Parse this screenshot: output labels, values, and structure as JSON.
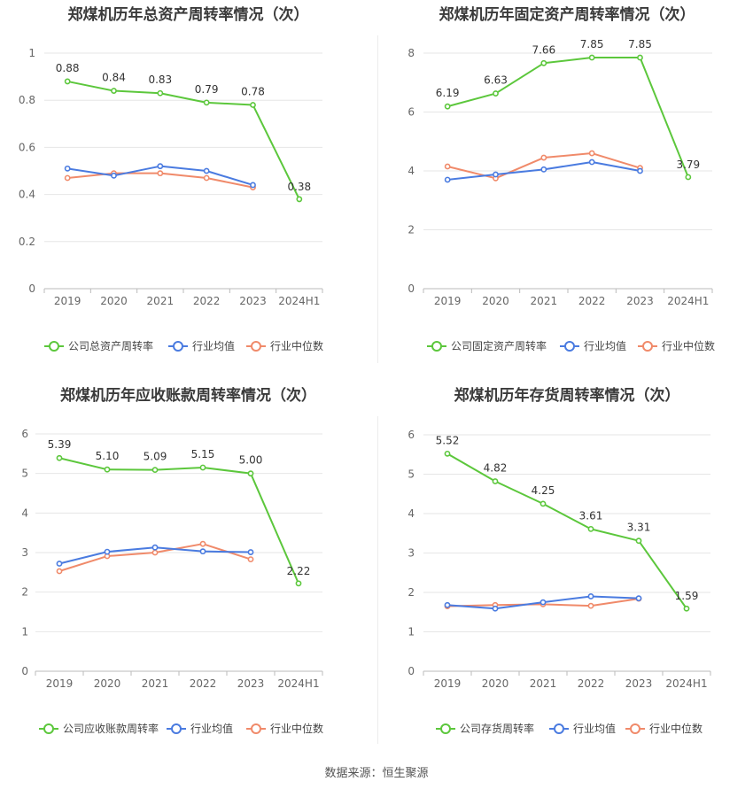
{
  "source_label": "数据来源：恒生聚源",
  "colors": {
    "company": "#5cc73c",
    "avg": "#4a7be0",
    "median": "#f08a6a"
  },
  "chart_data": [
    {
      "type": "line",
      "title": "郑煤机历年总资产周转率情况（次）",
      "categories": [
        "2019",
        "2020",
        "2021",
        "2022",
        "2023",
        "2024H1"
      ],
      "ylim": [
        0,
        1
      ],
      "yticks": [
        0,
        0.2,
        0.4,
        0.6,
        0.8,
        1
      ],
      "ytick_labels": [
        "0",
        "0.2",
        "0.4",
        "0.6",
        "0.8",
        "1"
      ],
      "grid": true,
      "legend": "bottom",
      "series": [
        {
          "name": "公司总资产周转率",
          "role": "company",
          "values": [
            0.88,
            0.84,
            0.83,
            0.79,
            0.78,
            0.38
          ],
          "labels": [
            "0.88",
            "0.84",
            "0.83",
            "0.79",
            "0.78",
            "0.38"
          ]
        },
        {
          "name": "行业均值",
          "role": "avg",
          "values": [
            0.51,
            0.48,
            0.52,
            0.5,
            0.44,
            null
          ]
        },
        {
          "name": "行业中位数",
          "role": "median",
          "values": [
            0.47,
            0.49,
            0.49,
            0.47,
            0.43,
            null
          ]
        }
      ]
    },
    {
      "type": "line",
      "title": "郑煤机历年固定资产周转率情况（次）",
      "categories": [
        "2019",
        "2020",
        "2021",
        "2022",
        "2023",
        "2024H1"
      ],
      "ylim": [
        0,
        8
      ],
      "yticks": [
        0,
        2,
        4,
        6,
        8
      ],
      "ytick_labels": [
        "0",
        "2",
        "4",
        "6",
        "8"
      ],
      "grid": true,
      "legend": "bottom",
      "series": [
        {
          "name": "公司固定资产周转率",
          "role": "company",
          "values": [
            6.19,
            6.63,
            7.66,
            7.85,
            7.85,
            3.79
          ],
          "labels": [
            "6.19",
            "6.63",
            "7.66",
            "7.85",
            "7.85",
            "3.79"
          ]
        },
        {
          "name": "行业均值",
          "role": "avg",
          "values": [
            3.7,
            3.88,
            4.05,
            4.3,
            4.0,
            null
          ]
        },
        {
          "name": "行业中位数",
          "role": "median",
          "values": [
            4.15,
            3.75,
            4.45,
            4.6,
            4.1,
            null
          ]
        }
      ]
    },
    {
      "type": "line",
      "title": "郑煤机历年应收账款周转率情况（次）",
      "categories": [
        "2019",
        "2020",
        "2021",
        "2022",
        "2023",
        "2024H1"
      ],
      "ylim": [
        0,
        6
      ],
      "yticks": [
        0,
        1,
        2,
        3,
        4,
        5,
        6
      ],
      "ytick_labels": [
        "0",
        "1",
        "2",
        "3",
        "4",
        "5",
        "6"
      ],
      "grid": true,
      "legend": "bottom",
      "series": [
        {
          "name": "公司应收账款周转率",
          "role": "company",
          "values": [
            5.39,
            5.1,
            5.09,
            5.15,
            5.0,
            2.22
          ],
          "labels": [
            "5.39",
            "5.10",
            "5.09",
            "5.15",
            "5.00",
            "2.22"
          ]
        },
        {
          "name": "行业均值",
          "role": "avg",
          "values": [
            2.72,
            3.02,
            3.13,
            3.03,
            3.01,
            null
          ]
        },
        {
          "name": "行业中位数",
          "role": "median",
          "values": [
            2.53,
            2.91,
            3.0,
            3.22,
            2.83,
            null
          ]
        }
      ]
    },
    {
      "type": "line",
      "title": "郑煤机历年存货周转率情况（次）",
      "categories": [
        "2019",
        "2020",
        "2021",
        "2022",
        "2023",
        "2024H1"
      ],
      "ylim": [
        0,
        6
      ],
      "yticks": [
        0,
        1,
        2,
        3,
        4,
        5,
        6
      ],
      "ytick_labels": [
        "0",
        "1",
        "2",
        "3",
        "4",
        "5",
        "6"
      ],
      "grid": true,
      "legend": "bottom",
      "series": [
        {
          "name": "公司存货周转率",
          "role": "company",
          "values": [
            5.52,
            4.82,
            4.25,
            3.61,
            3.31,
            1.59
          ],
          "labels": [
            "5.52",
            "4.82",
            "4.25",
            "3.61",
            "3.31",
            "1.59"
          ]
        },
        {
          "name": "行业均值",
          "role": "avg",
          "values": [
            1.68,
            1.59,
            1.75,
            1.9,
            1.85,
            null
          ]
        },
        {
          "name": "行业中位数",
          "role": "median",
          "values": [
            1.65,
            1.68,
            1.7,
            1.66,
            1.84,
            null
          ]
        }
      ]
    }
  ]
}
